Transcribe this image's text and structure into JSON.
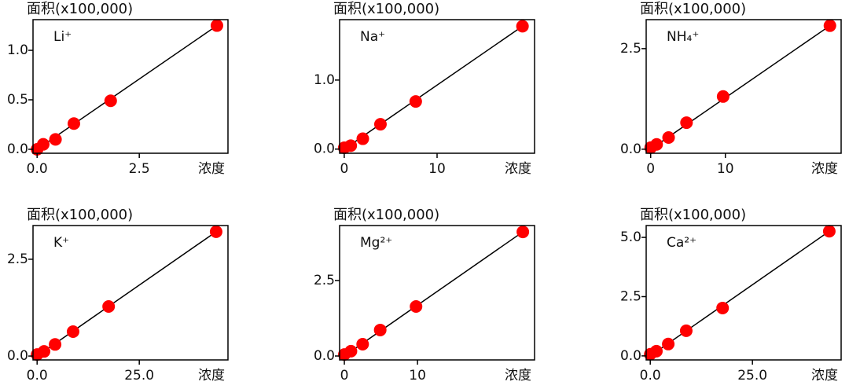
{
  "chart_data": [
    {
      "type": "scatter",
      "title": "面积(x100,000)",
      "x_label": "浓度",
      "annotation": "Li⁺",
      "color": "#ff0000",
      "x": [
        0,
        0.15,
        0.45,
        0.9,
        1.8,
        4.4
      ],
      "values": [
        0,
        0.05,
        0.1,
        0.26,
        0.49,
        1.25
      ],
      "fit": {
        "x": [
          0,
          4.4
        ],
        "values": [
          0,
          1.25
        ]
      },
      "xlim": [
        -0.1,
        4.67
      ],
      "ylim": [
        -0.04,
        1.31
      ],
      "xticks": [
        {
          "value": 0,
          "label": "0.0"
        },
        2.5
      ],
      "yticks": [
        {
          "value": 0,
          "label": "0.0"
        },
        0.5,
        {
          "value": 1,
          "label": "1.0"
        }
      ]
    },
    {
      "type": "scatter",
      "title": "面积(x100,000)",
      "x_label": "浓度",
      "annotation": "Na⁺",
      "color": "#ff0000",
      "x": [
        0,
        0.7,
        2,
        3.9,
        7.7,
        19.2
      ],
      "values": [
        0.02,
        0.05,
        0.15,
        0.36,
        0.69,
        1.78
      ],
      "fit": {
        "x": [
          0,
          19.2
        ],
        "values": [
          0,
          1.78
        ]
      },
      "xlim": [
        -0.5,
        20.5
      ],
      "ylim": [
        -0.06,
        1.875
      ],
      "xticks": [
        0,
        10
      ],
      "yticks": [
        {
          "value": 0,
          "label": "0.0"
        },
        {
          "value": 1,
          "label": "1.0"
        }
      ]
    },
    {
      "type": "scatter",
      "title": "面积(x100,000)",
      "x_label": "浓度",
      "annotation": "NH₄⁺",
      "color": "#ff0000",
      "x": [
        0,
        0.8,
        2.4,
        4.8,
        9.7,
        24
      ],
      "values": [
        0.04,
        0.12,
        0.29,
        0.66,
        1.31,
        3.07
      ],
      "fit": {
        "x": [
          0,
          24
        ],
        "values": [
          0,
          3.07
        ]
      },
      "xlim": [
        -0.6,
        25.5
      ],
      "ylim": [
        -0.1,
        3.22
      ],
      "xticks": [
        0,
        10
      ],
      "yticks": [
        {
          "value": 0,
          "label": "0.0"
        },
        2.5
      ]
    },
    {
      "type": "scatter",
      "title": "面积(x100,000)",
      "x_label": "浓度",
      "annotation": "K⁺",
      "color": "#ff0000",
      "x": [
        0,
        1.7,
        4.4,
        8.8,
        17.5,
        43.8
      ],
      "values": [
        0.04,
        0.12,
        0.3,
        0.63,
        1.28,
        3.21
      ],
      "fit": {
        "x": [
          0,
          43.8
        ],
        "values": [
          0,
          3.21
        ]
      },
      "xlim": [
        -1,
        46.7
      ],
      "ylim": [
        -0.1,
        3.37
      ],
      "xticks": [
        {
          "value": 0,
          "label": "0.0"
        },
        {
          "value": 25,
          "label": "25.0"
        }
      ],
      "yticks": [
        {
          "value": 0,
          "label": "0.0"
        },
        2.5
      ]
    },
    {
      "type": "scatter",
      "title": "面积(x100,000)",
      "x_label": "浓度",
      "annotation": "Mg²⁺",
      "color": "#ff0000",
      "x": [
        0,
        0.9,
        2.5,
        4.9,
        9.8,
        24.4
      ],
      "values": [
        0.05,
        0.16,
        0.39,
        0.86,
        1.64,
        4.11
      ],
      "fit": {
        "x": [
          0,
          24.4
        ],
        "values": [
          0,
          4.11
        ]
      },
      "xlim": [
        -0.65,
        26
      ],
      "ylim": [
        -0.13,
        4.32
      ],
      "xticks": [
        0,
        10
      ],
      "yticks": [
        {
          "value": 0,
          "label": "0.0"
        },
        2.5
      ]
    },
    {
      "type": "scatter",
      "title": "面积(x100,000)",
      "x_label": "浓度",
      "annotation": "Ca²⁺",
      "color": "#ff0000",
      "x": [
        0,
        1.5,
        4.4,
        8.8,
        17.7,
        43.8
      ],
      "values": [
        0.07,
        0.2,
        0.5,
        1.06,
        2.02,
        5.26
      ],
      "fit": {
        "x": [
          0,
          43.8
        ],
        "values": [
          0,
          5.26
        ]
      },
      "xlim": [
        -1,
        46.7
      ],
      "ylim": [
        -0.17,
        5.5
      ],
      "xticks": [
        {
          "value": 0,
          "label": "0.0"
        },
        {
          "value": 25,
          "label": "25.0"
        }
      ],
      "yticks": [
        {
          "value": 0,
          "label": "0.0"
        },
        2.5,
        {
          "value": 5,
          "label": "5.0"
        }
      ]
    }
  ]
}
